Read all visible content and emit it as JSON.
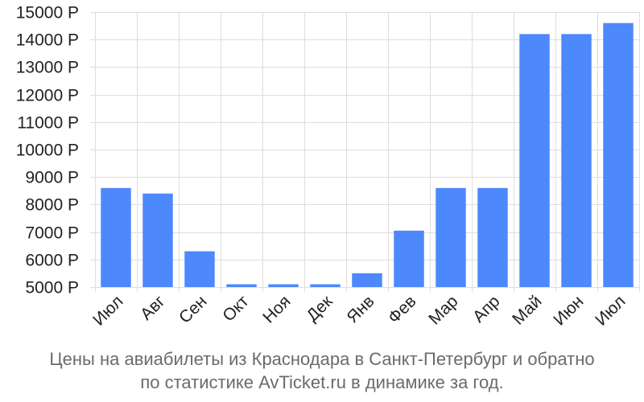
{
  "chart_data": {
    "type": "bar",
    "categories": [
      "Июл",
      "Авг",
      "Сен",
      "Окт",
      "Ноя",
      "Дек",
      "Янв",
      "Фев",
      "Мар",
      "Апр",
      "Май",
      "Июн",
      "Июл"
    ],
    "values": [
      8600,
      8400,
      6300,
      5100,
      5100,
      5100,
      5500,
      7050,
      8600,
      8600,
      14200,
      14200,
      14600
    ],
    "ylim": [
      5000,
      15000
    ],
    "yticks": [
      "5000 Р",
      "6000 Р",
      "7000 Р",
      "8000 Р",
      "9000 Р",
      "10000 Р",
      "11000 Р",
      "12000 Р",
      "13000 Р",
      "14000 Р",
      "15000 Р"
    ],
    "ytick_values": [
      5000,
      6000,
      7000,
      8000,
      9000,
      10000,
      11000,
      12000,
      13000,
      14000,
      15000
    ],
    "grid": true,
    "bar_color": "#4d88fc",
    "grid_color": "#dddddd"
  },
  "caption": {
    "line1": "Цены на авиабилеты из Краснодара в Санкт-Петербург и обратно",
    "line2": "по статистике AvTicket.ru в динамике за год."
  }
}
